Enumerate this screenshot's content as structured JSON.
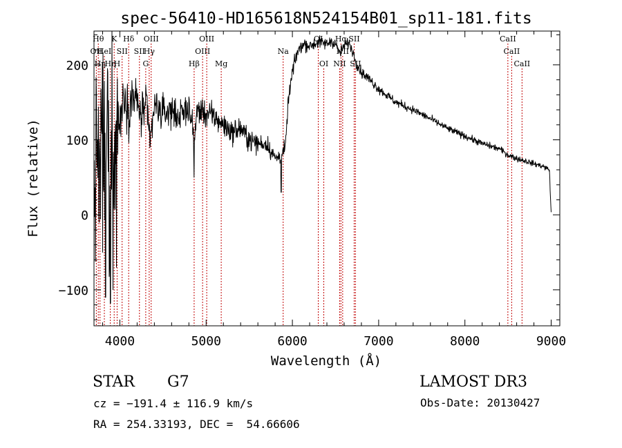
{
  "chart_data": {
    "type": "line",
    "title": "spec-56410-HD165618N524154B01_sp11-181.fits",
    "xlabel": "Wavelength (Å)",
    "ylabel": "Flux (relative)",
    "xlim": [
      3700,
      9100
    ],
    "ylim": [
      -148,
      245
    ],
    "xticks": [
      4000,
      5000,
      6000,
      7000,
      8000,
      9000
    ],
    "yticks": [
      -100,
      0,
      100,
      200
    ],
    "xtick_labels": [
      "4000",
      "5000",
      "6000",
      "7000",
      "8000",
      "9000"
    ],
    "ytick_labels": [
      "−100",
      "0",
      "100",
      "200"
    ],
    "grid": false,
    "legend": "none",
    "series": [
      {
        "name": "flux",
        "anchors": [
          [
            3700,
            20
          ],
          [
            3740,
            100
          ],
          [
            3770,
            40
          ],
          [
            3800,
            140
          ],
          [
            3830,
            50
          ],
          [
            3860,
            150
          ],
          [
            3880,
            -40
          ],
          [
            3900,
            170
          ],
          [
            3940,
            60
          ],
          [
            3970,
            150
          ],
          [
            4000,
            120
          ],
          [
            4050,
            165
          ],
          [
            4100,
            140
          ],
          [
            4150,
            160
          ],
          [
            4200,
            150
          ],
          [
            4250,
            130
          ],
          [
            4300,
            150
          ],
          [
            4350,
            95
          ],
          [
            4400,
            145
          ],
          [
            4500,
            135
          ],
          [
            4600,
            140
          ],
          [
            4700,
            130
          ],
          [
            4800,
            145
          ],
          [
            4860,
            100
          ],
          [
            4900,
            140
          ],
          [
            5000,
            135
          ],
          [
            5100,
            130
          ],
          [
            5200,
            120
          ],
          [
            5300,
            110
          ],
          [
            5400,
            115
          ],
          [
            5500,
            100
          ],
          [
            5600,
            95
          ],
          [
            5700,
            95
          ],
          [
            5800,
            75
          ],
          [
            5880,
            80
          ],
          [
            5920,
            90
          ],
          [
            5950,
            150
          ],
          [
            6000,
            190
          ],
          [
            6050,
            215
          ],
          [
            6100,
            225
          ],
          [
            6150,
            228
          ],
          [
            6200,
            225
          ],
          [
            6300,
            230
          ],
          [
            6400,
            228
          ],
          [
            6450,
            232
          ],
          [
            6500,
            228
          ],
          [
            6550,
            215
          ],
          [
            6600,
            225
          ],
          [
            6650,
            230
          ],
          [
            6700,
            218
          ],
          [
            6750,
            200
          ],
          [
            6800,
            190
          ],
          [
            6900,
            180
          ],
          [
            7000,
            168
          ],
          [
            7200,
            150
          ],
          [
            7400,
            140
          ],
          [
            7600,
            128
          ],
          [
            7800,
            115
          ],
          [
            8000,
            105
          ],
          [
            8200,
            95
          ],
          [
            8400,
            88
          ],
          [
            8500,
            80
          ],
          [
            8600,
            75
          ],
          [
            8700,
            72
          ],
          [
            8800,
            68
          ],
          [
            8900,
            65
          ],
          [
            8980,
            60
          ],
          [
            9000,
            0
          ]
        ],
        "noise_sigma": [
          [
            3700,
            80
          ],
          [
            3950,
            70
          ],
          [
            4000,
            25
          ],
          [
            4500,
            16
          ],
          [
            5000,
            13
          ],
          [
            5500,
            10
          ],
          [
            5800,
            8
          ],
          [
            5950,
            7
          ],
          [
            6200,
            6
          ],
          [
            6800,
            5
          ],
          [
            7500,
            3.5
          ],
          [
            8500,
            3
          ],
          [
            9000,
            2.5
          ]
        ],
        "dips": [
          [
            3760,
            -10
          ],
          [
            3800,
            -50
          ],
          [
            3835,
            -110
          ],
          [
            3890,
            -118
          ],
          [
            3920,
            -100
          ],
          [
            3960,
            -70
          ],
          [
            4860,
            50
          ],
          [
            5870,
            30
          ]
        ]
      }
    ],
    "lines": [
      {
        "x": 3727,
        "label": "OII",
        "row": 1
      },
      {
        "x": 3750,
        "label": "Hθ",
        "row": 0
      },
      {
        "x": 3770,
        "label": "Hη",
        "row": 2
      },
      {
        "x": 3820,
        "label": "HeI",
        "row": 1
      },
      {
        "x": 3889,
        "label": "Hη",
        "row": 2
      },
      {
        "x": 3934,
        "label": "K",
        "row": 0
      },
      {
        "x": 3968,
        "label": "H",
        "row": 2
      },
      {
        "x": 4026,
        "label": "SII",
        "row": 1
      },
      {
        "x": 4102,
        "label": "Hδ",
        "row": 0
      },
      {
        "x": 4227,
        "label": "SII",
        "row": 1
      },
      {
        "x": 4300,
        "label": "G",
        "row": 2
      },
      {
        "x": 4340,
        "label": "Hγ",
        "row": 1
      },
      {
        "x": 4363,
        "label": "OIII",
        "row": 0
      },
      {
        "x": 4861,
        "label": "Hβ",
        "row": 2
      },
      {
        "x": 4959,
        "label": "OIII",
        "row": 1
      },
      {
        "x": 5007,
        "label": "OIII",
        "row": 0
      },
      {
        "x": 5175,
        "label": "Mg",
        "row": 2
      },
      {
        "x": 5893,
        "label": "Na",
        "row": 1
      },
      {
        "x": 6300,
        "label": "OI",
        "row": 0
      },
      {
        "x": 6364,
        "label": "OI",
        "row": 2
      },
      {
        "x": 6548,
        "label": "NII",
        "row": 2
      },
      {
        "x": 6563,
        "label": "Hα",
        "row": 0
      },
      {
        "x": 6583,
        "label": "NII",
        "row": 1
      },
      {
        "x": 6716,
        "label": "SII",
        "row": 0
      },
      {
        "x": 6731,
        "label": "SII",
        "row": 2
      },
      {
        "x": 8498,
        "label": "CaII",
        "row": 0
      },
      {
        "x": 8542,
        "label": "CaII",
        "row": 1
      },
      {
        "x": 8662,
        "label": "CaII",
        "row": 2
      }
    ]
  },
  "info": {
    "class": "STAR",
    "subclass": "G7",
    "redshift": "cz = −191.4 ± 116.9 km/s",
    "coords": "RA = 254.33193, DEC =  54.66606",
    "survey": "LAMOST DR3",
    "obs_date": "Obs-Date: 20130427"
  },
  "colors": {
    "line_marker": "#c00000",
    "spectrum": "#000000"
  }
}
